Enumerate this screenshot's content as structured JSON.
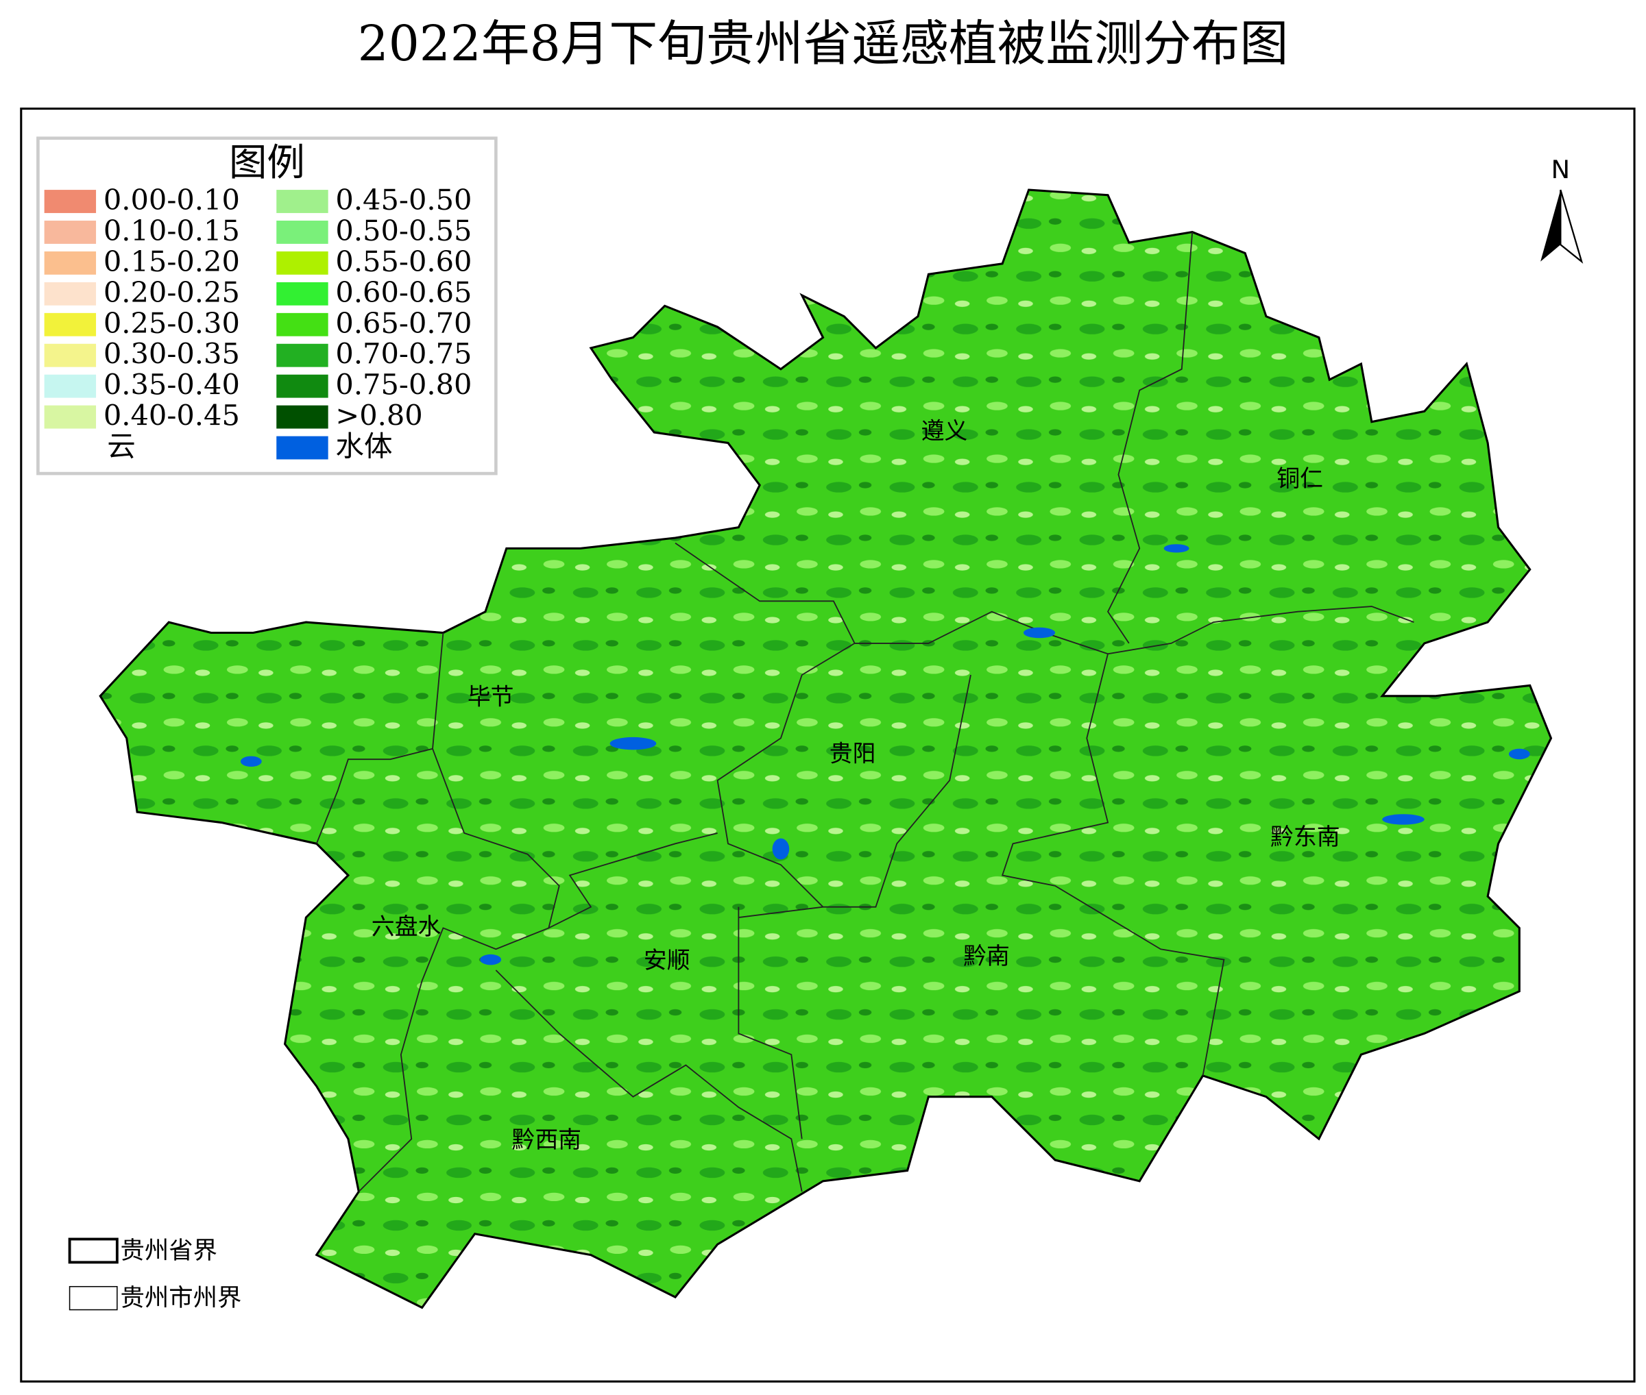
{
  "header": {
    "title": "2022年8月下旬贵州省遥感植被监测分布图"
  },
  "legend": {
    "title": "图例",
    "items": [
      {
        "label": "0.00-0.10",
        "color": "#f08a70"
      },
      {
        "label": "0.10-0.15",
        "color": "#f8b89c"
      },
      {
        "label": "0.15-0.20",
        "color": "#fbbf8e"
      },
      {
        "label": "0.20-0.25",
        "color": "#fde2cc"
      },
      {
        "label": "0.25-0.30",
        "color": "#f2f23a"
      },
      {
        "label": "0.30-0.35",
        "color": "#f4f48c"
      },
      {
        "label": "0.35-0.40",
        "color": "#c6f6f0"
      },
      {
        "label": "0.40-0.45",
        "color": "#d8f6a2"
      },
      {
        "label": "云",
        "color": "#ffffff"
      },
      {
        "label": "0.45-0.50",
        "color": "#a0f08c"
      },
      {
        "label": "0.50-0.55",
        "color": "#7af07a"
      },
      {
        "label": "0.55-0.60",
        "color": "#aef000"
      },
      {
        "label": "0.60-0.65",
        "color": "#32f032"
      },
      {
        "label": "0.65-0.70",
        "color": "#44e014"
      },
      {
        "label": "0.70-0.75",
        "color": "#22b022"
      },
      {
        "label": "0.75-0.80",
        "color": "#108a10"
      },
      {
        "label": ">0.80",
        "color": "#005000"
      },
      {
        "label": "水体",
        "color": "#0060e0"
      }
    ]
  },
  "north_arrow": {
    "label": "N"
  },
  "regions": [
    "遵义",
    "铜仁",
    "毕节",
    "贵阳",
    "黔东南",
    "六盘水",
    "安顺",
    "黔南",
    "黔西南"
  ],
  "boundary_legend": [
    "贵州省界",
    "贵州市州界"
  ]
}
